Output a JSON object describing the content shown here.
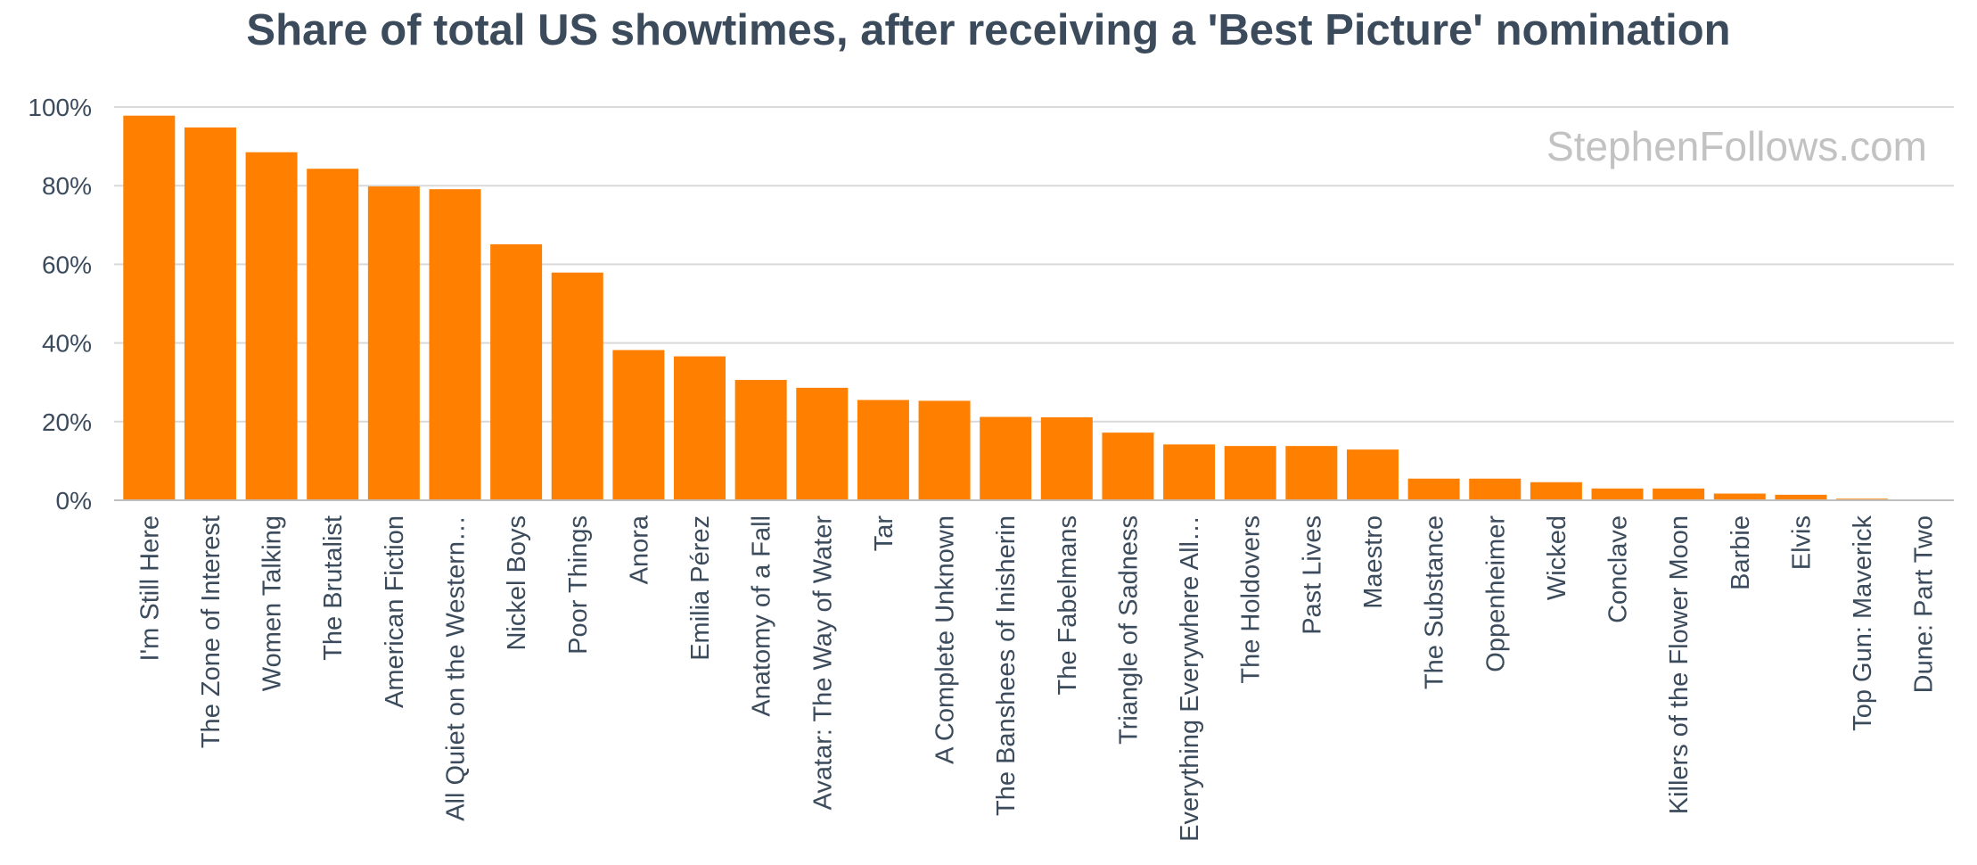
{
  "chart_data": {
    "type": "bar",
    "title": "Share of total US showtimes, after receiving a 'Best Picture' nomination",
    "xlabel": "",
    "ylabel": "",
    "ylim": [
      0,
      100
    ],
    "yticks": [
      0,
      20,
      40,
      60,
      80,
      100
    ],
    "ytick_labels": [
      "0%",
      "20%",
      "40%",
      "60%",
      "80%",
      "100%"
    ],
    "grid": true,
    "legend": "none",
    "watermark": "StephenFollows.com",
    "bar_color": "#ff7f00",
    "categories": [
      "I'm Still Here",
      "The Zone of Interest",
      "Women Talking",
      "The Brutalist",
      "American Fiction",
      "All Quiet on the Western…",
      "Nickel Boys",
      "Poor Things",
      "Anora",
      "Emilia Pérez",
      "Anatomy of a Fall",
      "Avatar: The Way of Water",
      "Tar",
      "A Complete Unknown",
      "The Banshees of Inisherin",
      "The Fabelmans",
      "Triangle of Sadness",
      "Everything Everywhere All…",
      "The Holdovers",
      "Past Lives",
      "Maestro",
      "The Substance",
      "Oppenheimer",
      "Wicked",
      "Conclave",
      "Killers of the Flower Moon",
      "Barbie",
      "Elvis",
      "Top Gun: Maverick",
      "Dune: Part Two"
    ],
    "values": [
      97.8,
      94.8,
      88.5,
      84.3,
      79.8,
      79.1,
      65.1,
      57.9,
      38.2,
      36.6,
      30.6,
      28.6,
      25.5,
      25.3,
      21.2,
      21.1,
      17.2,
      14.2,
      13.8,
      13.8,
      12.9,
      5.5,
      5.5,
      4.6,
      3.0,
      3.0,
      1.7,
      1.4,
      0.4,
      0.0
    ]
  }
}
